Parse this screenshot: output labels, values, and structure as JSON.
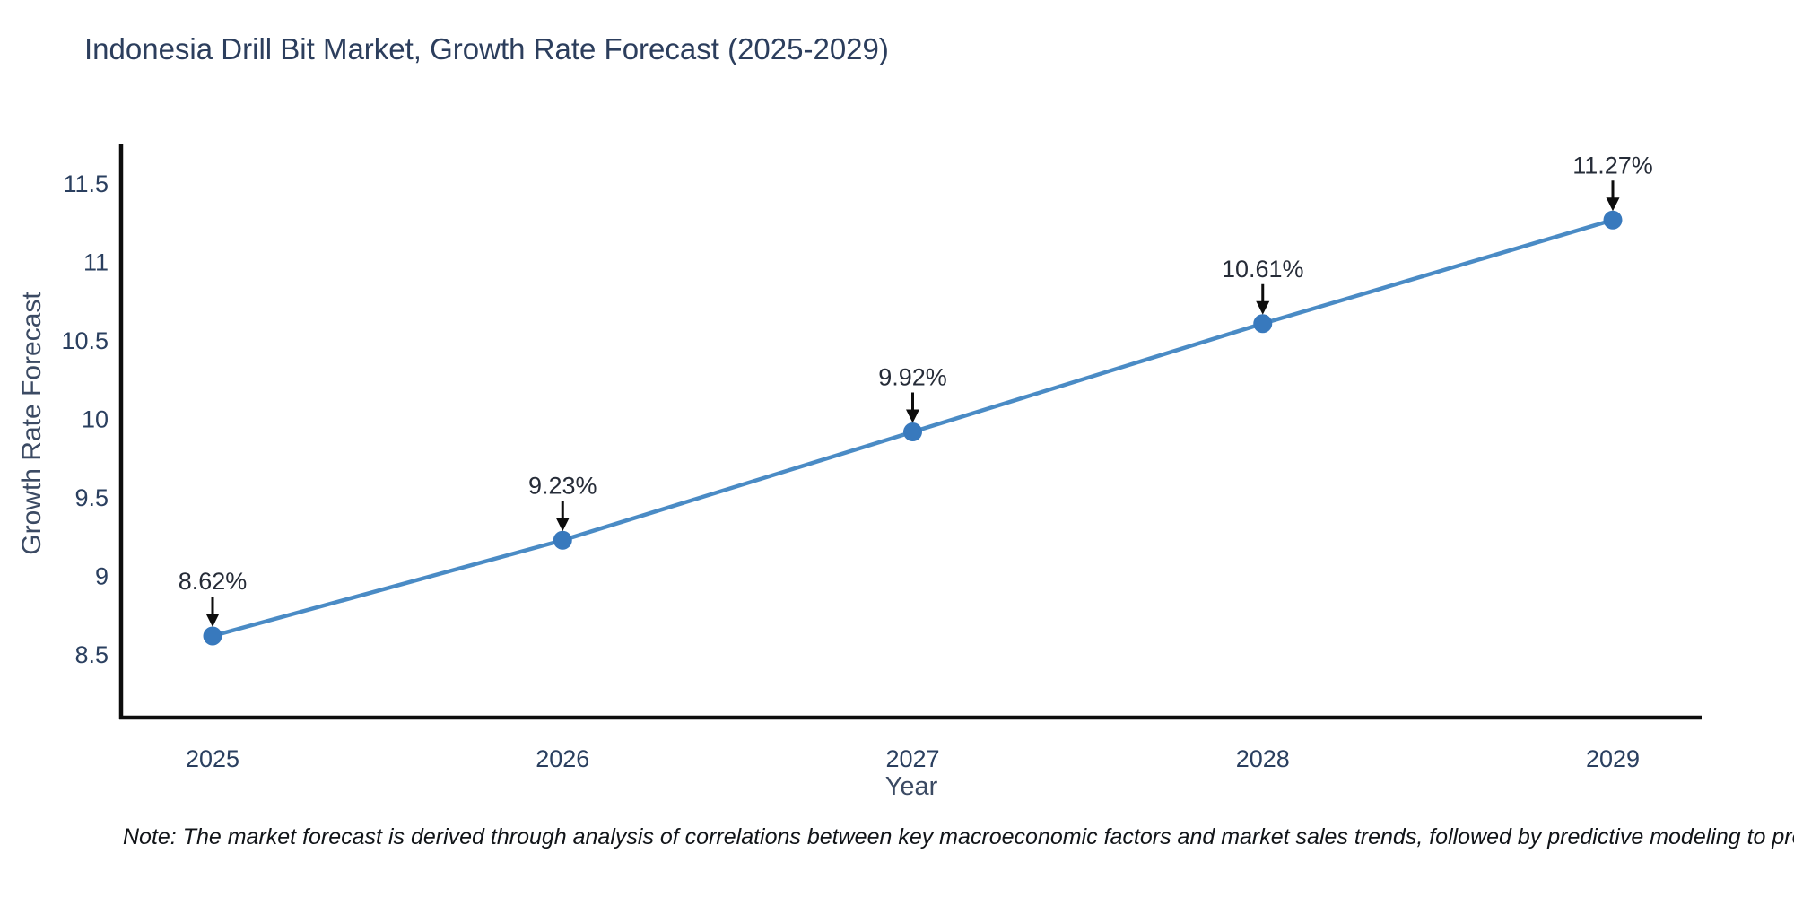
{
  "chart_data": {
    "type": "line",
    "title": "Indonesia Drill Bit Market, Growth Rate Forecast (2025-2029)",
    "xlabel": "Year",
    "ylabel": "Growth Rate Forecast",
    "x": [
      2025,
      2026,
      2027,
      2028,
      2029
    ],
    "x_tick_labels": [
      "2025",
      "2026",
      "2027",
      "2028",
      "2029"
    ],
    "series": [
      {
        "name": "Growth Rate Forecast",
        "values": [
          8.62,
          9.23,
          9.92,
          10.61,
          11.27
        ],
        "point_labels": [
          "8.62%",
          "9.23%",
          "9.92%",
          "10.61%",
          "11.27%"
        ]
      }
    ],
    "y_ticks": [
      8.5,
      9,
      9.5,
      10,
      10.5,
      11,
      11.5
    ],
    "y_tick_labels": [
      "8.5",
      "9",
      "9.5",
      "10",
      "10.5",
      "11",
      "11.5"
    ],
    "ylim": [
      8.1,
      11.77
    ],
    "grid": false,
    "legend_position": "none",
    "annotations_have_arrows": true,
    "colors": {
      "line": "#4a8bc5",
      "marker": "#3879bd",
      "axis": "#0d0d0d",
      "tick_text": "#2a3f5f",
      "axis_title_text": "#3b4a63",
      "annotation_text": "#262c38",
      "annotation_arrow": "#0d0d0d",
      "title_text": "#2c3e5d",
      "background": "#ffffff"
    }
  },
  "note": {
    "text": "Note: The market forecast is derived through analysis of correlations between key macroeconomic factors and market sales trends, followed by predictive modeling to project future sales"
  }
}
